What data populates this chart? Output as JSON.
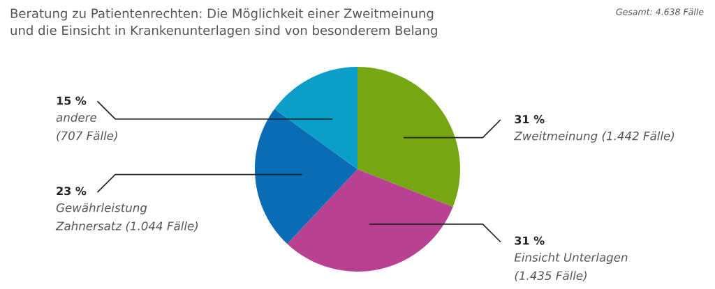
{
  "chart_data": {
    "type": "pie",
    "title": "Beratung zu Patientenrechten: Die Möglichkeit einer Zweitmeinung\nund die Einsicht in Krankenunterlagen sind von besonderem Belang",
    "annotations": [
      "Gesamt: 4.638 Fälle"
    ],
    "categories": [
      "Zweitmeinung (1.442 Fälle)",
      "Einsicht Unterlagen\n(1.435 Fälle)",
      "Gewährleistung\nZahnersatz (1.044 Fälle)",
      "andere\n(707 Fälle)"
    ],
    "values": [
      31,
      31,
      23,
      15
    ],
    "value_labels": [
      "31 %",
      "31 %",
      "23 %",
      "15 %"
    ],
    "colors": [
      "#76a713",
      "#b94191",
      "#0a6cb4",
      "#0a9ec8"
    ]
  }
}
